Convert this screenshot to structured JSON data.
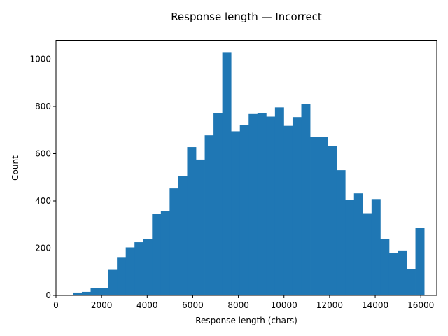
{
  "chart_data": {
    "type": "bar",
    "title": "Response length — Incorrect",
    "xlabel": "Response length (chars)",
    "ylabel": "Count",
    "xlim": [
      0,
      16700
    ],
    "ylim": [
      0,
      1080
    ],
    "xticks": [
      0,
      2000,
      4000,
      6000,
      8000,
      10000,
      12000,
      14000,
      16000
    ],
    "xtick_labels": [
      "0",
      "2000",
      "4000",
      "6000",
      "8000",
      "10000",
      "12000",
      "14000",
      "16000"
    ],
    "yticks": [
      0,
      200,
      400,
      600,
      800,
      1000
    ],
    "ytick_labels": [
      "0",
      "200",
      "400",
      "600",
      "800",
      "1000"
    ],
    "bar_color": "#1f77b4",
    "bin_start": 750,
    "bin_width": 385,
    "values": [
      12,
      15,
      30,
      30,
      108,
      162,
      203,
      225,
      238,
      345,
      357,
      453,
      505,
      628,
      575,
      678,
      772,
      1027,
      695,
      722,
      768,
      772,
      757,
      796,
      718,
      755,
      810,
      670,
      670,
      632,
      530,
      405,
      432,
      348,
      408,
      240,
      178,
      190,
      112,
      285
    ],
    "grid": false
  }
}
